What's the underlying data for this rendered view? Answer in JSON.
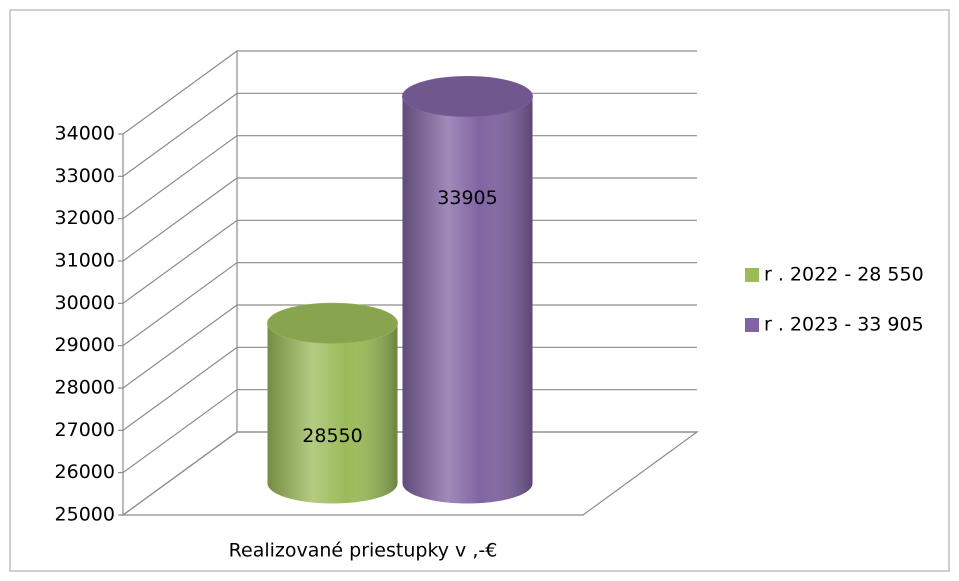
{
  "chart_data": {
    "type": "bar3d",
    "categories": [
      "Realizované priestupky v ,-€"
    ],
    "series": [
      {
        "name": "r . 2022 - 28 550",
        "color": "#9bbb59",
        "values": [
          28550
        ],
        "value_labels": [
          "28550"
        ]
      },
      {
        "name": "r . 2023 - 33 905",
        "color": "#8064a2",
        "values": [
          33905
        ],
        "value_labels": [
          "33905"
        ]
      }
    ],
    "ylim": [
      25000,
      34000
    ],
    "yticks": [
      25000,
      26000,
      27000,
      28000,
      29000,
      30000,
      31000,
      32000,
      33000,
      34000
    ],
    "grid": true,
    "legend": "right"
  }
}
